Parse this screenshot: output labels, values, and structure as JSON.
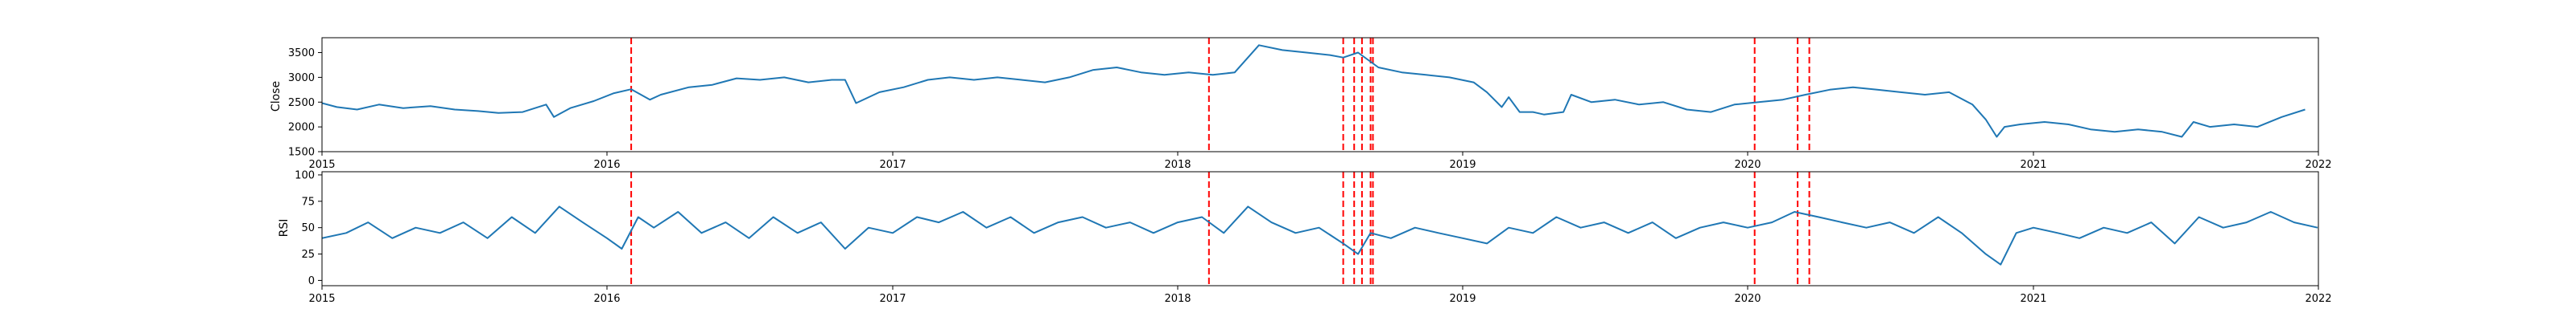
{
  "chart_data": [
    {
      "type": "line",
      "ylabel": "Close",
      "xlabel": "",
      "xlim": [
        "2015-01-01",
        "2022-01-01"
      ],
      "ylim": [
        1500,
        3800
      ],
      "x_ticks": [
        "2015",
        "2016",
        "2017",
        "2018",
        "2019",
        "2020",
        "2021",
        "2022"
      ],
      "y_ticks": [
        1500,
        2000,
        2500,
        3000,
        3500
      ],
      "grid": false,
      "series": [
        {
          "color": "#1f77b4",
          "points": [
            [
              "2015-01-01",
              2480
            ],
            [
              "2015-01-20",
              2400
            ],
            [
              "2015-02-15",
              2350
            ],
            [
              "2015-03-15",
              2450
            ],
            [
              "2015-04-15",
              2380
            ],
            [
              "2015-05-20",
              2420
            ],
            [
              "2015-06-20",
              2350
            ],
            [
              "2015-07-20",
              2320
            ],
            [
              "2015-08-15",
              2280
            ],
            [
              "2015-09-15",
              2300
            ],
            [
              "2015-10-15",
              2450
            ],
            [
              "2015-10-25",
              2200
            ],
            [
              "2015-11-15",
              2380
            ],
            [
              "2015-12-15",
              2520
            ],
            [
              "2016-01-10",
              2680
            ],
            [
              "2016-02-01",
              2760
            ],
            [
              "2016-02-25",
              2550
            ],
            [
              "2016-03-10",
              2650
            ],
            [
              "2016-04-15",
              2800
            ],
            [
              "2016-05-15",
              2850
            ],
            [
              "2016-06-15",
              2980
            ],
            [
              "2016-07-15",
              2950
            ],
            [
              "2016-08-15",
              3000
            ],
            [
              "2016-09-15",
              2900
            ],
            [
              "2016-10-15",
              2950
            ],
            [
              "2016-11-01",
              2950
            ],
            [
              "2016-11-15",
              2480
            ],
            [
              "2016-12-15",
              2700
            ],
            [
              "2017-01-15",
              2800
            ],
            [
              "2017-02-15",
              2950
            ],
            [
              "2017-03-15",
              3000
            ],
            [
              "2017-04-15",
              2950
            ],
            [
              "2017-05-15",
              3000
            ],
            [
              "2017-06-15",
              2950
            ],
            [
              "2017-07-15",
              2900
            ],
            [
              "2017-08-15",
              3000
            ],
            [
              "2017-09-15",
              3150
            ],
            [
              "2017-10-15",
              3200
            ],
            [
              "2017-11-15",
              3100
            ],
            [
              "2017-12-15",
              3050
            ],
            [
              "2018-01-15",
              3100
            ],
            [
              "2018-02-15",
              3050
            ],
            [
              "2018-03-15",
              3100
            ],
            [
              "2018-04-15",
              3650
            ],
            [
              "2018-05-15",
              3550
            ],
            [
              "2018-06-15",
              3500
            ],
            [
              "2018-07-15",
              3450
            ],
            [
              "2018-08-01",
              3400
            ],
            [
              "2018-08-20",
              3500
            ],
            [
              "2018-09-15",
              3200
            ],
            [
              "2018-10-15",
              3100
            ],
            [
              "2018-11-15",
              3050
            ],
            [
              "2018-12-15",
              3000
            ],
            [
              "2019-01-15",
              2900
            ],
            [
              "2019-02-01",
              2700
            ],
            [
              "2019-02-20",
              2400
            ],
            [
              "2019-03-01",
              2600
            ],
            [
              "2019-03-15",
              2300
            ],
            [
              "2019-04-01",
              2300
            ],
            [
              "2019-04-15",
              2250
            ],
            [
              "2019-05-10",
              2300
            ],
            [
              "2019-05-20",
              2650
            ],
            [
              "2019-06-15",
              2500
            ],
            [
              "2019-07-15",
              2550
            ],
            [
              "2019-08-15",
              2450
            ],
            [
              "2019-09-15",
              2500
            ],
            [
              "2019-10-15",
              2350
            ],
            [
              "2019-11-15",
              2300
            ],
            [
              "2019-12-15",
              2450
            ],
            [
              "2020-01-15",
              2500
            ],
            [
              "2020-02-15",
              2550
            ],
            [
              "2020-03-15",
              2650
            ],
            [
              "2020-04-15",
              2750
            ],
            [
              "2020-05-15",
              2800
            ],
            [
              "2020-06-15",
              2750
            ],
            [
              "2020-07-15",
              2700
            ],
            [
              "2020-08-15",
              2650
            ],
            [
              "2020-09-15",
              2700
            ],
            [
              "2020-10-15",
              2450
            ],
            [
              "2020-11-01",
              2150
            ],
            [
              "2020-11-15",
              1800
            ],
            [
              "2020-11-25",
              2000
            ],
            [
              "2020-12-15",
              2050
            ],
            [
              "2021-01-15",
              2100
            ],
            [
              "2021-02-15",
              2050
            ],
            [
              "2021-03-15",
              1950
            ],
            [
              "2021-04-15",
              1900
            ],
            [
              "2021-05-15",
              1950
            ],
            [
              "2021-06-15",
              1900
            ],
            [
              "2021-07-10",
              1800
            ],
            [
              "2021-07-25",
              2100
            ],
            [
              "2021-08-15",
              2000
            ],
            [
              "2021-09-15",
              2050
            ],
            [
              "2021-10-15",
              2000
            ],
            [
              "2021-11-15",
              2200
            ],
            [
              "2021-12-15",
              2350
            ]
          ]
        }
      ],
      "vlines": [
        "2016-02-01",
        "2018-02-10",
        "2018-08-01",
        "2018-08-15",
        "2018-08-25",
        "2018-09-05",
        "2018-09-08",
        "2020-01-10",
        "2020-03-05",
        "2020-03-20"
      ],
      "vline_color": "#ff0000"
    },
    {
      "type": "line",
      "ylabel": "RSI",
      "xlabel": "",
      "xlim": [
        "2015-01-01",
        "2022-01-01"
      ],
      "ylim": [
        -5,
        103
      ],
      "x_ticks": [
        "2015",
        "2016",
        "2017",
        "2018",
        "2019",
        "2020",
        "2021",
        "2022"
      ],
      "y_ticks": [
        0,
        25,
        50,
        75,
        100
      ],
      "grid": false,
      "series": [
        {
          "color": "#1f77b4",
          "points": [
            [
              "2015-01-01",
              40
            ],
            [
              "2015-02-01",
              45
            ],
            [
              "2015-03-01",
              55
            ],
            [
              "2015-04-01",
              40
            ],
            [
              "2015-05-01",
              50
            ],
            [
              "2015-06-01",
              45
            ],
            [
              "2015-07-01",
              55
            ],
            [
              "2015-08-01",
              40
            ],
            [
              "2015-09-01",
              60
            ],
            [
              "2015-10-01",
              45
            ],
            [
              "2015-11-01",
              70
            ],
            [
              "2015-12-01",
              55
            ],
            [
              "2016-01-01",
              40
            ],
            [
              "2016-01-20",
              30
            ],
            [
              "2016-02-10",
              60
            ],
            [
              "2016-03-01",
              50
            ],
            [
              "2016-04-01",
              65
            ],
            [
              "2016-05-01",
              45
            ],
            [
              "2016-06-01",
              55
            ],
            [
              "2016-07-01",
              40
            ],
            [
              "2016-08-01",
              60
            ],
            [
              "2016-09-01",
              45
            ],
            [
              "2016-10-01",
              55
            ],
            [
              "2016-11-01",
              30
            ],
            [
              "2016-12-01",
              50
            ],
            [
              "2017-01-01",
              45
            ],
            [
              "2017-02-01",
              60
            ],
            [
              "2017-03-01",
              55
            ],
            [
              "2017-04-01",
              65
            ],
            [
              "2017-05-01",
              50
            ],
            [
              "2017-06-01",
              60
            ],
            [
              "2017-07-01",
              45
            ],
            [
              "2017-08-01",
              55
            ],
            [
              "2017-09-01",
              60
            ],
            [
              "2017-10-01",
              50
            ],
            [
              "2017-11-01",
              55
            ],
            [
              "2017-12-01",
              45
            ],
            [
              "2018-01-01",
              55
            ],
            [
              "2018-02-01",
              60
            ],
            [
              "2018-03-01",
              45
            ],
            [
              "2018-04-01",
              70
            ],
            [
              "2018-05-01",
              55
            ],
            [
              "2018-06-01",
              45
            ],
            [
              "2018-07-01",
              50
            ],
            [
              "2018-08-01",
              35
            ],
            [
              "2018-08-20",
              25
            ],
            [
              "2018-09-05",
              45
            ],
            [
              "2018-10-01",
              40
            ],
            [
              "2018-11-01",
              50
            ],
            [
              "2018-12-01",
              45
            ],
            [
              "2019-01-01",
              40
            ],
            [
              "2019-02-01",
              35
            ],
            [
              "2019-03-01",
              50
            ],
            [
              "2019-04-01",
              45
            ],
            [
              "2019-05-01",
              60
            ],
            [
              "2019-06-01",
              50
            ],
            [
              "2019-07-01",
              55
            ],
            [
              "2019-08-01",
              45
            ],
            [
              "2019-09-01",
              55
            ],
            [
              "2019-10-01",
              40
            ],
            [
              "2019-11-01",
              50
            ],
            [
              "2019-12-01",
              55
            ],
            [
              "2020-01-01",
              50
            ],
            [
              "2020-02-01",
              55
            ],
            [
              "2020-03-01",
              65
            ],
            [
              "2020-04-01",
              60
            ],
            [
              "2020-05-01",
              55
            ],
            [
              "2020-06-01",
              50
            ],
            [
              "2020-07-01",
              55
            ],
            [
              "2020-08-01",
              45
            ],
            [
              "2020-09-01",
              60
            ],
            [
              "2020-10-01",
              45
            ],
            [
              "2020-11-01",
              25
            ],
            [
              "2020-11-20",
              15
            ],
            [
              "2020-12-10",
              45
            ],
            [
              "2021-01-01",
              50
            ],
            [
              "2021-02-01",
              45
            ],
            [
              "2021-03-01",
              40
            ],
            [
              "2021-04-01",
              50
            ],
            [
              "2021-05-01",
              45
            ],
            [
              "2021-06-01",
              55
            ],
            [
              "2021-07-01",
              35
            ],
            [
              "2021-08-01",
              60
            ],
            [
              "2021-09-01",
              50
            ],
            [
              "2021-10-01",
              55
            ],
            [
              "2021-11-01",
              65
            ],
            [
              "2021-12-01",
              55
            ],
            [
              "2021-12-31",
              50
            ]
          ]
        }
      ],
      "vlines": [
        "2016-02-01",
        "2018-02-10",
        "2018-08-01",
        "2018-08-15",
        "2018-08-25",
        "2018-09-05",
        "2018-09-08",
        "2020-01-10",
        "2020-03-05",
        "2020-03-20"
      ],
      "vline_color": "#ff0000"
    }
  ]
}
